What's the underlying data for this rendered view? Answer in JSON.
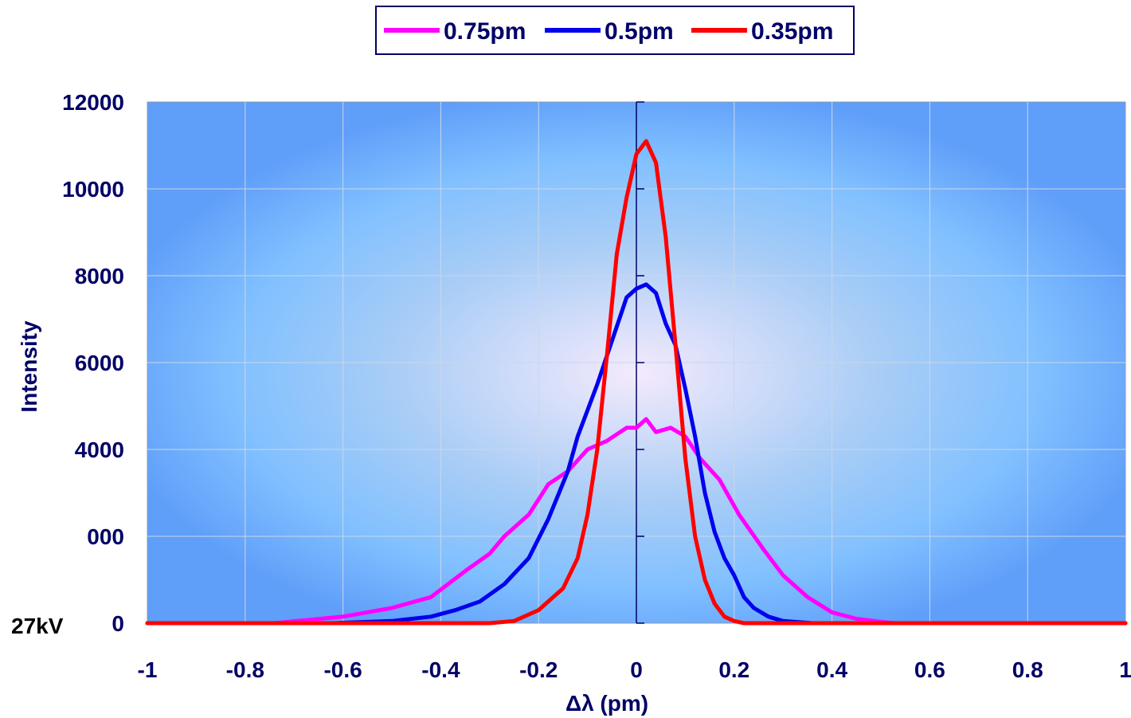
{
  "chart_data": {
    "type": "line",
    "title": "",
    "xlabel": "Δλ (pm)",
    "ylabel": "Intensity",
    "xlim": [
      -1,
      1
    ],
    "ylim": [
      0,
      12000
    ],
    "x_ticks": [
      "-1",
      "-0.8",
      "-0.6",
      "-0.4",
      "-0.2",
      "0",
      "0.2",
      "0.4",
      "0.6",
      "0.8",
      "1"
    ],
    "y_ticks": [
      "0",
      "000",
      "4000",
      "6000",
      "8000",
      "10000",
      "12000"
    ],
    "y_tick_values": [
      0,
      2000,
      4000,
      6000,
      8000,
      10000,
      12000
    ],
    "grid": true,
    "legend_position": "top",
    "annotation": "27kV",
    "background_colors": [
      "#5f9ef9",
      "#81c0ff",
      "#f4eafc"
    ],
    "series": [
      {
        "name": "0.75pm",
        "color": "#ff00ff",
        "x": [
          -1.0,
          -0.74,
          -0.6,
          -0.5,
          -0.42,
          -0.35,
          -0.3,
          -0.27,
          -0.22,
          -0.18,
          -0.14,
          -0.1,
          -0.06,
          -0.02,
          0.0,
          0.02,
          0.04,
          0.07,
          0.1,
          0.13,
          0.17,
          0.21,
          0.26,
          0.3,
          0.35,
          0.4,
          0.45,
          0.5,
          0.53,
          1.0
        ],
        "y": [
          0,
          0,
          150,
          350,
          600,
          1200,
          1600,
          2000,
          2500,
          3200,
          3500,
          4000,
          4200,
          4500,
          4500,
          4700,
          4400,
          4500,
          4300,
          3800,
          3300,
          2500,
          1700,
          1100,
          600,
          250,
          100,
          30,
          0,
          0
        ]
      },
      {
        "name": "0.5pm",
        "color": "#0000ee",
        "x": [
          -1.0,
          -0.62,
          -0.5,
          -0.42,
          -0.37,
          -0.32,
          -0.27,
          -0.22,
          -0.18,
          -0.14,
          -0.12,
          -0.08,
          -0.05,
          -0.02,
          0.0,
          0.02,
          0.04,
          0.06,
          0.08,
          0.1,
          0.12,
          0.14,
          0.16,
          0.18,
          0.2,
          0.22,
          0.24,
          0.27,
          0.3,
          0.36,
          0.4,
          1.0
        ],
        "y": [
          0,
          0,
          50,
          150,
          300,
          500,
          900,
          1500,
          2400,
          3500,
          4300,
          5500,
          6500,
          7500,
          7700,
          7800,
          7600,
          6900,
          6400,
          5400,
          4300,
          3000,
          2100,
          1500,
          1100,
          600,
          350,
          150,
          50,
          0,
          0,
          0
        ]
      },
      {
        "name": "0.35pm",
        "color": "#ff0000",
        "x": [
          -1.0,
          -0.3,
          -0.25,
          -0.2,
          -0.15,
          -0.12,
          -0.1,
          -0.08,
          -0.06,
          -0.04,
          -0.02,
          0.0,
          0.02,
          0.04,
          0.06,
          0.08,
          0.1,
          0.12,
          0.14,
          0.16,
          0.18,
          0.2,
          0.22,
          0.25,
          0.3,
          1.0
        ],
        "y": [
          0,
          0,
          50,
          300,
          800,
          1500,
          2500,
          4000,
          6200,
          8500,
          9800,
          10800,
          11100,
          10600,
          8900,
          6400,
          3800,
          2000,
          1000,
          450,
          150,
          50,
          0,
          0,
          0,
          0
        ]
      }
    ]
  }
}
